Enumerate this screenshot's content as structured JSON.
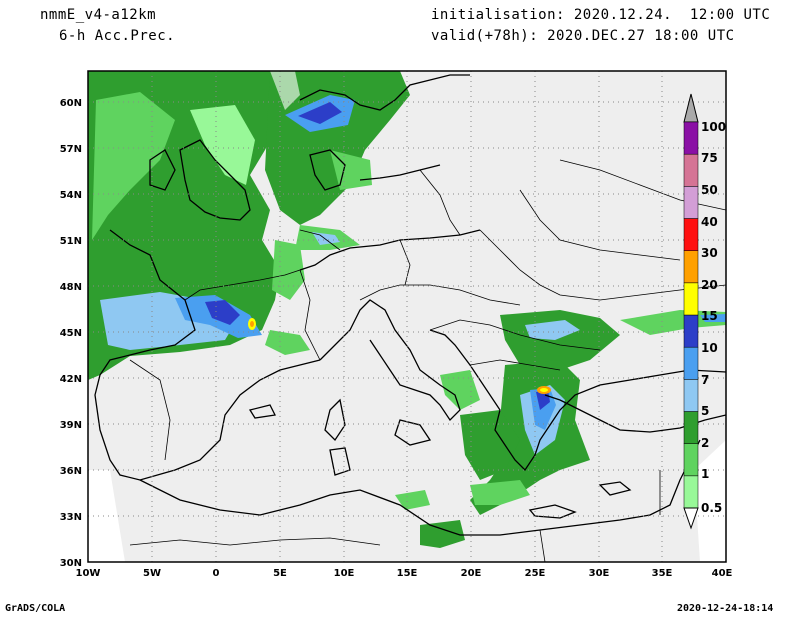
{
  "header": {
    "model": "nmmE_v4-a12km",
    "field": "6-h Acc.Prec.",
    "init": "initialisation: 2020.12.24.  12:00 UTC",
    "valid": "valid(+78h): 2020.DEC.27 18:00 UTC"
  },
  "footer": {
    "software": "GrADS/COLA",
    "timestamp": "2020-12-24-18:14"
  },
  "map": {
    "lat_ticks": [
      "60N",
      "57N",
      "54N",
      "51N",
      "48N",
      "45N",
      "42N",
      "39N",
      "36N",
      "33N",
      "30N"
    ],
    "lon_ticks": [
      "10W",
      "5W",
      "0",
      "5E",
      "10E",
      "15E",
      "20E",
      "25E",
      "30E",
      "35E",
      "40E"
    ]
  },
  "colorbar": {
    "levels": [
      "0.5",
      "1",
      "2",
      "5",
      "7",
      "10",
      "15",
      "20",
      "30",
      "40",
      "50",
      "75",
      "100"
    ],
    "colors": [
      "#98f898",
      "#5fd35f",
      "#2f9e2f",
      "#8fc8f2",
      "#4a9ff0",
      "#2c3ec8",
      "#ffff00",
      "#ffa000",
      "#ff1010",
      "#d39ed6",
      "#d57495",
      "#8a10a5"
    ],
    "top_arrow_color": "#aaaaaa"
  }
}
